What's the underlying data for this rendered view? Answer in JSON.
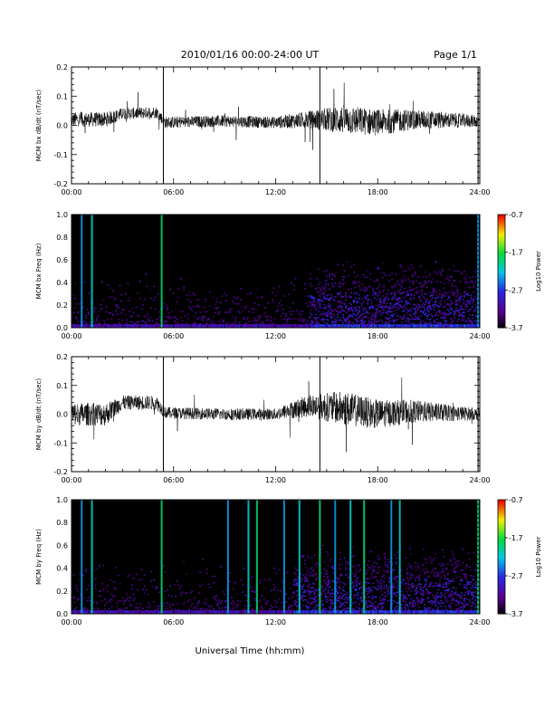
{
  "header": {
    "title": "2010/01/16  00:00-24:00 UT",
    "page": "Page 1/1"
  },
  "x_axis": {
    "ticks": [
      "00:00",
      "06:00",
      "12:00",
      "18:00",
      "24:00"
    ],
    "label": "Universal Time (hh:mm)"
  },
  "chart_data": [
    {
      "type": "line",
      "ylabel": "MCM bx dB/dt (nT/sec)",
      "xlim": [
        0,
        24
      ],
      "ylim": [
        -0.2,
        0.2
      ],
      "yticks": [
        "0.2",
        "0.1",
        "0.0",
        "-0.1",
        "-0.2"
      ],
      "markers_hours": [
        5.4,
        14.6,
        23.9
      ],
      "envelope": [
        {
          "hour": 0,
          "mean": 0.02,
          "amp": 0.025
        },
        {
          "hour": 2,
          "mean": 0.02,
          "amp": 0.025
        },
        {
          "hour": 3,
          "mean": 0.04,
          "amp": 0.02
        },
        {
          "hour": 5,
          "mean": 0.045,
          "amp": 0.02
        },
        {
          "hour": 5.5,
          "mean": 0.01,
          "amp": 0.02
        },
        {
          "hour": 9,
          "mean": 0.015,
          "amp": 0.02
        },
        {
          "hour": 12,
          "mean": 0.01,
          "amp": 0.02
        },
        {
          "hour": 14,
          "mean": 0.02,
          "amp": 0.03
        },
        {
          "hour": 16,
          "mean": 0.02,
          "amp": 0.05
        },
        {
          "hour": 18,
          "mean": 0.01,
          "amp": 0.045
        },
        {
          "hour": 20,
          "mean": 0.02,
          "amp": 0.035
        },
        {
          "hour": 24,
          "mean": 0.015,
          "amp": 0.02
        }
      ]
    },
    {
      "type": "heatmap",
      "ylabel": "MCM bx Freq (Hz)",
      "xlim": [
        0,
        24
      ],
      "ylim": [
        0,
        1.0
      ],
      "yticks": [
        "1.0",
        "0.8",
        "0.6",
        "0.4",
        "0.2",
        "0.0"
      ],
      "colorbar": {
        "label": "Log10 Power",
        "ticks": [
          "-0.7",
          "-1.7",
          "-2.7",
          "-3.7"
        ],
        "range": [
          -3.7,
          -0.7
        ]
      },
      "bright_lines_hours": [
        0.6,
        1.2,
        5.3,
        23.9
      ],
      "activity_region": {
        "hours": [
          14,
          24
        ],
        "freq": [
          0,
          0.6
        ]
      }
    },
    {
      "type": "line",
      "ylabel": "MCM by dB/dt (nT/sec)",
      "xlim": [
        0,
        24
      ],
      "ylim": [
        -0.2,
        0.2
      ],
      "yticks": [
        "0.2",
        "0.1",
        "0.0",
        "-0.1",
        "-0.2"
      ],
      "markers_hours": [
        5.4,
        14.6,
        23.9
      ],
      "envelope": [
        {
          "hour": 0,
          "mean": 0.0,
          "amp": 0.04
        },
        {
          "hour": 2,
          "mean": 0.0,
          "amp": 0.04
        },
        {
          "hour": 3,
          "mean": 0.04,
          "amp": 0.025
        },
        {
          "hour": 5,
          "mean": 0.04,
          "amp": 0.025
        },
        {
          "hour": 5.5,
          "mean": 0.005,
          "amp": 0.02
        },
        {
          "hour": 9,
          "mean": 0.0,
          "amp": 0.02
        },
        {
          "hour": 12,
          "mean": 0.0,
          "amp": 0.02
        },
        {
          "hour": 14,
          "mean": 0.03,
          "amp": 0.04
        },
        {
          "hour": 16,
          "mean": 0.02,
          "amp": 0.06
        },
        {
          "hour": 18,
          "mean": 0.0,
          "amp": 0.05
        },
        {
          "hour": 20,
          "mean": 0.01,
          "amp": 0.04
        },
        {
          "hour": 24,
          "mean": 0.0,
          "amp": 0.02
        }
      ]
    },
    {
      "type": "heatmap",
      "ylabel": "MCM by Freq (Hz)",
      "xlim": [
        0,
        24
      ],
      "ylim": [
        0,
        1.0
      ],
      "yticks": [
        "1.0",
        "0.8",
        "0.6",
        "0.4",
        "0.2",
        "0.0"
      ],
      "colorbar": {
        "label": "Log10 Power",
        "ticks": [
          "-0.7",
          "-1.7",
          "-2.7",
          "-3.7"
        ],
        "range": [
          -3.7,
          -0.7
        ]
      },
      "bright_lines_hours": [
        0.6,
        1.2,
        5.3,
        9.2,
        10.4,
        10.9,
        12.5,
        13.4,
        14.6,
        15.5,
        16.4,
        17.2,
        18.8,
        19.3,
        23.9
      ],
      "activity_region": {
        "hours": [
          13,
          24
        ],
        "freq": [
          0,
          0.6
        ]
      }
    }
  ]
}
